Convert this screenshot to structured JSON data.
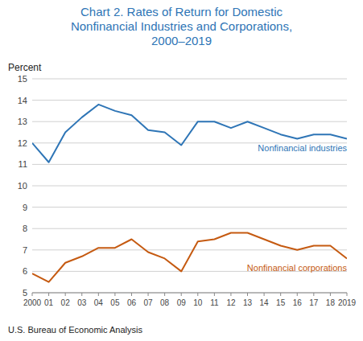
{
  "chart_data": {
    "type": "line",
    "title": "Chart 2. Rates of Return for Domestic\nNonfinancial Industries and Corporations,\n2000–2019",
    "y_label": "Percent",
    "footnote": "U.S. Bureau of Economic Analysis",
    "x": [
      2000,
      2001,
      2002,
      2003,
      2004,
      2005,
      2006,
      2007,
      2008,
      2009,
      2010,
      2011,
      2012,
      2013,
      2014,
      2015,
      2016,
      2017,
      2018,
      2019
    ],
    "series": [
      {
        "name": "Nonfinancial industries",
        "color": "#2E75B6",
        "values": [
          12.0,
          11.1,
          12.5,
          13.2,
          13.8,
          13.5,
          13.3,
          12.6,
          12.5,
          11.9,
          13.0,
          13.0,
          12.7,
          13.0,
          12.7,
          12.4,
          12.2,
          12.4,
          12.4,
          12.2
        ]
      },
      {
        "name": "Nonfinancial corporations",
        "color": "#C55A11",
        "values": [
          5.9,
          5.5,
          6.4,
          6.7,
          7.1,
          7.1,
          7.5,
          6.9,
          6.6,
          6.0,
          7.4,
          7.5,
          7.8,
          7.8,
          7.5,
          7.2,
          7.0,
          7.2,
          7.2,
          6.6
        ]
      }
    ],
    "xlim": [
      2000,
      2019
    ],
    "xticks": [
      2000,
      {
        "value": 2001,
        "label": "01"
      },
      {
        "value": 2002,
        "label": "02"
      },
      {
        "value": 2003,
        "label": "03"
      },
      {
        "value": 2004,
        "label": "04"
      },
      {
        "value": 2005,
        "label": "05"
      },
      {
        "value": 2006,
        "label": "06"
      },
      {
        "value": 2007,
        "label": "07"
      },
      {
        "value": 2008,
        "label": "08"
      },
      {
        "value": 2009,
        "label": "09"
      },
      {
        "value": 2010,
        "label": "10"
      },
      {
        "value": 2011,
        "label": "11"
      },
      {
        "value": 2012,
        "label": "12"
      },
      {
        "value": 2013,
        "label": "13"
      },
      {
        "value": 2014,
        "label": "14"
      },
      {
        "value": 2015,
        "label": "15"
      },
      {
        "value": 2016,
        "label": "16"
      },
      {
        "value": 2017,
        "label": "17"
      },
      {
        "value": 2018,
        "label": "18"
      },
      2019
    ],
    "ylim": [
      5,
      15
    ],
    "yticks": [
      5,
      6,
      7,
      8,
      9,
      10,
      11,
      12,
      13,
      14,
      15
    ],
    "grid": true
  }
}
